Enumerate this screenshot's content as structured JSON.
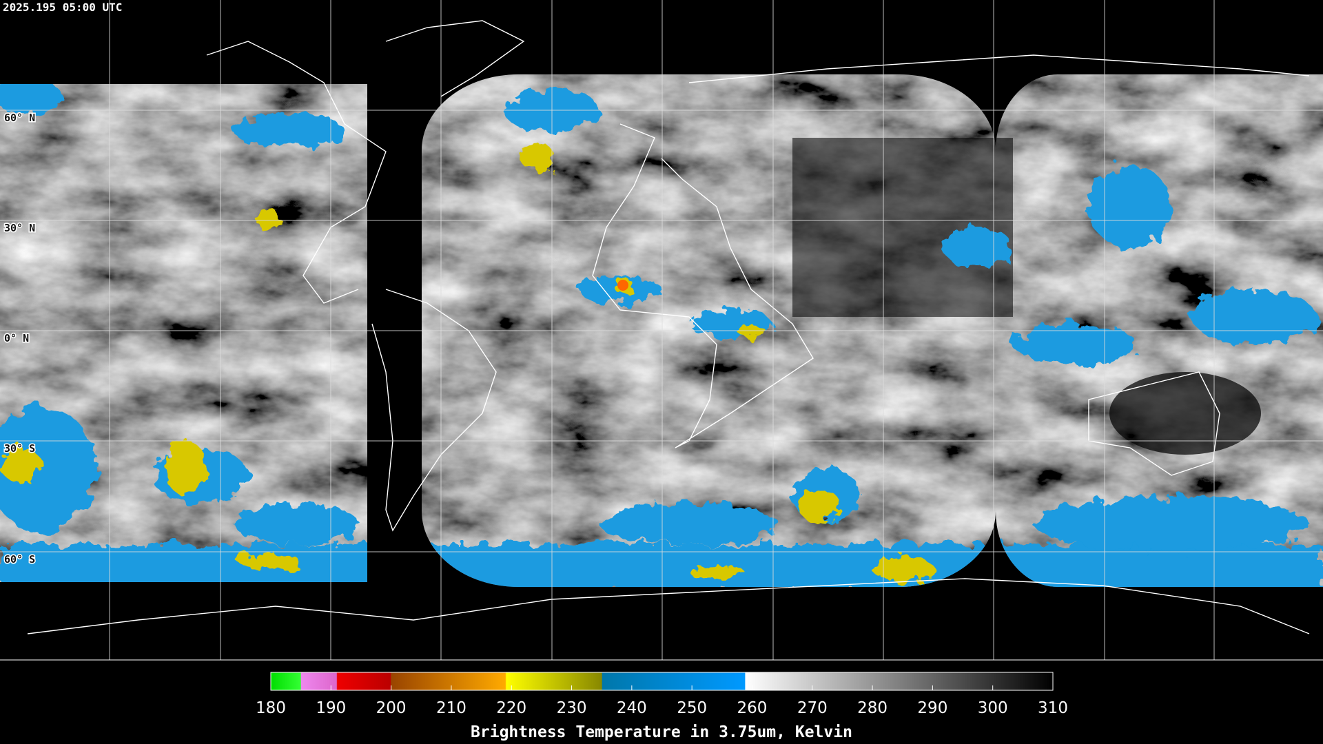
{
  "header": {
    "timestamp": "2025.195 05:00 UTC"
  },
  "map": {
    "latitude_labels": [
      "60° N",
      "30° N",
      "0° N",
      "30° S",
      "60° S"
    ]
  },
  "colorbar": {
    "ticks": [
      180,
      190,
      200,
      210,
      220,
      230,
      240,
      250,
      260,
      270,
      280,
      290,
      300,
      310
    ],
    "title": "Brightness Temperature in 3.75um, Kelvin"
  }
}
